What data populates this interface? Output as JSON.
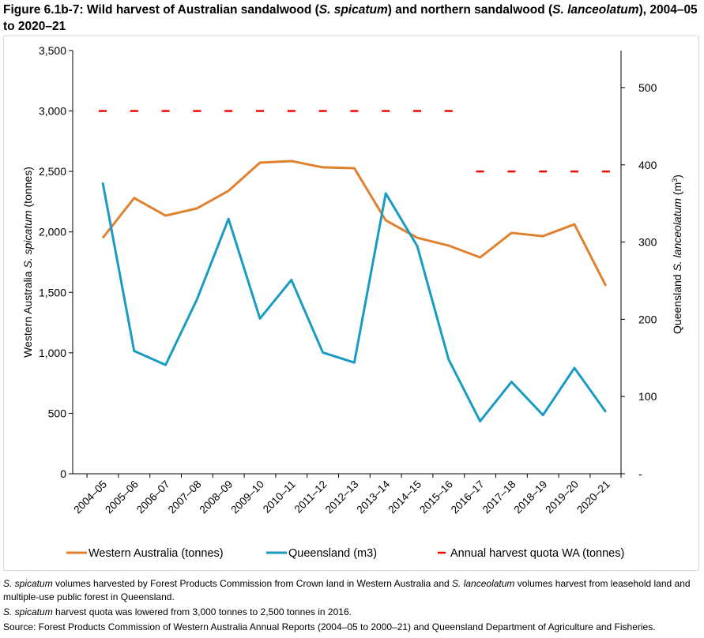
{
  "title": {
    "part1": "Figure 6.1b-7: Wild harvest of Australian sandalwood (",
    "italic1": "S. spicatum",
    "part2": ") and northern sandalwood (",
    "italic2": "S. lanceolatum",
    "part3": "), 2004–05 to 2020–21"
  },
  "chart_data": {
    "type": "line",
    "categories": [
      "2004–05",
      "2005–06",
      "2006–07",
      "2007–08",
      "2008–09",
      "2009–10",
      "2010–11",
      "2011–12",
      "2012–13",
      "2013–14",
      "2014–15",
      "2015–16",
      "2016–17",
      "2017–18",
      "2018–19",
      "2019–20",
      "2020–21"
    ],
    "left_axis": {
      "label_prefix": "Western Australia ",
      "label_italic": "S. spicatum",
      "label_suffix": " (tonnes)",
      "ylim": [
        0,
        3500
      ],
      "ticks": [
        "0",
        "500",
        "1,000",
        "1,500",
        "2,000",
        "2,500",
        "3,000",
        "3,500"
      ]
    },
    "right_axis": {
      "label_prefix": "Queensland ",
      "label_italic": "S. lanceolatum",
      "label_suffix": " (m",
      "label_sup": "3",
      "label_end": ")",
      "ylim": [
        0,
        548
      ],
      "ticks": [
        "-",
        "100",
        "200",
        "300",
        "400",
        "500"
      ]
    },
    "series": [
      {
        "name": "Western Australia (tonnes)",
        "axis": "left",
        "color": "#e0812f",
        "style": "solid",
        "values": [
          1950,
          2280,
          2135,
          2195,
          2340,
          2573,
          2586,
          2534,
          2527,
          2096,
          1952,
          1887,
          1789,
          1992,
          1965,
          2063,
          1554
        ]
      },
      {
        "name": "Queensland (m3)",
        "axis": "right",
        "color": "#1a9bc4",
        "style": "solid",
        "values": [
          377,
          159,
          141,
          226,
          330,
          201,
          251,
          157,
          144,
          363,
          295,
          148,
          68,
          119,
          76,
          137,
          80
        ]
      },
      {
        "name": "Annual harvest quota WA (tonnes)",
        "axis": "left",
        "color": "#ff0000",
        "style": "dashed",
        "values": [
          3000,
          3000,
          3000,
          3000,
          3000,
          3000,
          3000,
          3000,
          3000,
          3000,
          3000,
          3000,
          2500,
          2500,
          2500,
          2500,
          2500
        ]
      }
    ],
    "grid": false,
    "legend": "bottom"
  },
  "notes": {
    "n1_i": "S. spicatum",
    "n1": " volumes harvested by Forest Products Commission from Crown land in Western Australia and ",
    "n1_i2": "S. lanceolatum",
    "n1b": " volumes harvest from leasehold land and multiple-use public forest in Queensland.",
    "n2_i": "S. spicatum",
    "n2": " harvest quota was lowered from 3,000 tonnes to 2,500 tonnes in 2016.",
    "n3": "Source: Forest Products Commission of Western Australia Annual Reports (2004–05 to 2000–21) and Queensland Department of Agriculture and Fisheries."
  }
}
